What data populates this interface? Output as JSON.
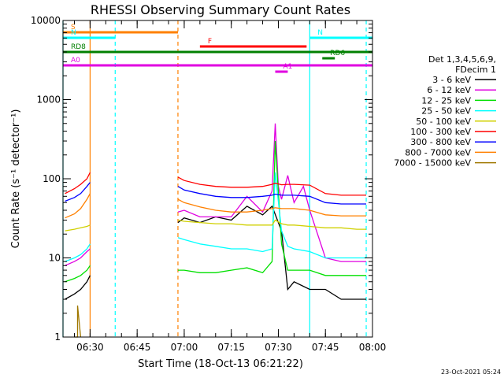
{
  "chart_data": {
    "type": "line",
    "title": "RHESSI Observing Summary Count Rates",
    "xlabel": "Start Time (18-Oct-13 06:21:22)",
    "ylabel": "Count Rate (s⁻¹ detector⁻¹)",
    "y_scale": "log",
    "ylim": [
      1,
      10000
    ],
    "xlim": [
      "06:21:22",
      "08:00:00"
    ],
    "y_tick_labels": [
      "1",
      "10",
      "100",
      "1000",
      "10000"
    ],
    "x_tick_labels": [
      "06:30",
      "06:45",
      "07:00",
      "07:15",
      "07:30",
      "07:45",
      "08:00"
    ],
    "legend_header": [
      "Det 1,3,4,5,6,9,",
      "FDecim 1"
    ],
    "timestamp": "23-Oct-2021 05:24",
    "series": [
      {
        "name": "3 - 6 keV",
        "color": "#000000",
        "x": [
          "06:22",
          "06:25",
          "06:27",
          "06:29",
          "06:30",
          "06:58",
          "07:00",
          "07:05",
          "07:10",
          "07:15",
          "07:20",
          "07:25",
          "07:28",
          "07:31",
          "07:33",
          "07:35",
          "07:40",
          "07:45",
          "07:50",
          "07:55",
          "07:58"
        ],
        "y": [
          3,
          3.5,
          4,
          5,
          6,
          28,
          32,
          28,
          33,
          30,
          45,
          35,
          45,
          22,
          4,
          5,
          4,
          4,
          3,
          3,
          3
        ]
      },
      {
        "name": "6 - 12 keV",
        "color": "#e000e0",
        "x": [
          "06:22",
          "06:25",
          "06:27",
          "06:29",
          "06:30",
          "06:58",
          "07:00",
          "07:05",
          "07:10",
          "07:15",
          "07:20",
          "07:25",
          "07:28",
          "07:29",
          "07:30",
          "07:31",
          "07:33",
          "07:35",
          "07:38",
          "07:40",
          "07:45",
          "07:50",
          "07:55",
          "07:58"
        ],
        "y": [
          8,
          9,
          10,
          12,
          13,
          38,
          40,
          33,
          33,
          33,
          60,
          38,
          70,
          500,
          80,
          55,
          110,
          50,
          80,
          40,
          10,
          9,
          9,
          9
        ]
      },
      {
        "name": "12 - 25 keV",
        "color": "#00e000",
        "x": [
          "06:22",
          "06:25",
          "06:27",
          "06:29",
          "06:30",
          "06:58",
          "07:00",
          "07:05",
          "07:10",
          "07:15",
          "07:20",
          "07:25",
          "07:28",
          "07:29",
          "07:31",
          "07:33",
          "07:35",
          "07:40",
          "07:45",
          "07:50",
          "07:55",
          "07:58"
        ],
        "y": [
          5,
          5.5,
          6,
          7,
          8,
          7,
          7,
          6.5,
          6.5,
          7,
          7.5,
          6.5,
          9,
          300,
          15,
          7,
          7,
          7,
          6,
          6,
          6,
          6
        ]
      },
      {
        "name": "25 - 50 keV",
        "color": "#00ffff",
        "x": [
          "06:22",
          "06:25",
          "06:27",
          "06:29",
          "06:30",
          "06:58",
          "07:00",
          "07:05",
          "07:10",
          "07:15",
          "07:20",
          "07:25",
          "07:28",
          "07:29",
          "07:31",
          "07:33",
          "07:35",
          "07:40",
          "07:45",
          "07:50",
          "07:55",
          "07:58"
        ],
        "y": [
          9,
          10,
          11,
          13,
          15,
          18,
          17,
          15,
          14,
          13,
          13,
          12,
          13,
          120,
          22,
          14,
          13,
          12,
          10,
          10,
          10,
          10
        ]
      },
      {
        "name": "50 - 100 keV",
        "color": "#d0d000",
        "x": [
          "06:22",
          "06:25",
          "06:27",
          "06:29",
          "06:30",
          "06:58",
          "07:00",
          "07:05",
          "07:10",
          "07:15",
          "07:20",
          "07:25",
          "07:28",
          "07:29",
          "07:31",
          "07:33",
          "07:35",
          "07:40",
          "07:45",
          "07:50",
          "07:55",
          "07:58"
        ],
        "y": [
          22,
          23,
          24,
          25,
          26,
          30,
          29,
          28,
          27,
          27,
          26,
          26,
          26,
          30,
          27,
          26,
          26,
          25,
          24,
          24,
          23,
          23
        ]
      },
      {
        "name": "100 - 300 keV",
        "color": "#ff0000",
        "x": [
          "06:22",
          "06:25",
          "06:27",
          "06:29",
          "06:30",
          "06:58",
          "07:00",
          "07:05",
          "07:10",
          "07:15",
          "07:20",
          "07:25",
          "07:28",
          "07:29",
          "07:31",
          "07:33",
          "07:35",
          "07:40",
          "07:45",
          "07:50",
          "07:55",
          "07:58"
        ],
        "y": [
          65,
          75,
          85,
          100,
          120,
          105,
          95,
          85,
          80,
          78,
          78,
          80,
          85,
          88,
          84,
          85,
          85,
          83,
          65,
          62,
          62,
          62
        ]
      },
      {
        "name": "300 - 800 keV",
        "color": "#0000ff",
        "x": [
          "06:22",
          "06:25",
          "06:27",
          "06:29",
          "06:30",
          "06:58",
          "07:00",
          "07:05",
          "07:10",
          "07:15",
          "07:20",
          "07:25",
          "07:28",
          "07:29",
          "07:31",
          "07:33",
          "07:35",
          "07:40",
          "07:45",
          "07:50",
          "07:55",
          "07:58"
        ],
        "y": [
          52,
          58,
          65,
          80,
          90,
          80,
          72,
          65,
          60,
          58,
          58,
          60,
          62,
          64,
          62,
          62,
          62,
          60,
          50,
          48,
          48,
          48
        ]
      },
      {
        "name": "800 - 7000 keV",
        "color": "#ff8000",
        "x": [
          "06:22",
          "06:25",
          "06:27",
          "06:29",
          "06:30",
          "06:58",
          "07:00",
          "07:05",
          "07:10",
          "07:15",
          "07:20",
          "07:25",
          "07:28",
          "07:29",
          "07:31",
          "07:33",
          "07:35",
          "07:40",
          "07:45",
          "07:50",
          "07:55",
          "07:58"
        ],
        "y": [
          32,
          36,
          42,
          55,
          65,
          55,
          50,
          44,
          40,
          38,
          38,
          40,
          42,
          43,
          42,
          42,
          42,
          40,
          35,
          34,
          34,
          34
        ]
      },
      {
        "name": "7000 - 15000 keV",
        "color": "#a07800",
        "x": [
          "06:25",
          "06:26",
          "06:26",
          "06:27",
          "06:27"
        ],
        "y": [
          1,
          1,
          2.5,
          1,
          1
        ]
      }
    ],
    "attenuator_labels": [
      {
        "label": "S",
        "color": "#ff8000",
        "start": "06:21:22",
        "end": "06:58"
      },
      {
        "label": "N",
        "color": "#00ffff",
        "start": "06:21:22",
        "end": "06:38"
      },
      {
        "label": "N",
        "color": "#00ffff",
        "start": "07:40",
        "end": "08:00"
      },
      {
        "label": "F",
        "color": "#ff0000",
        "start": "07:05",
        "end": "07:39"
      },
      {
        "label": "RD8",
        "color": "#008000",
        "start": "06:21:22",
        "end": "08:00"
      },
      {
        "label": "RD6",
        "color": "#008000",
        "start": "07:44",
        "end": "07:48"
      },
      {
        "label": "A0",
        "color": "#e000e0",
        "start": "06:21:22",
        "end": "08:00"
      },
      {
        "label": "A1",
        "color": "#e000e0",
        "start": "07:29",
        "end": "07:33"
      }
    ],
    "vertical_markers": [
      {
        "time": "06:21:22",
        "color": "#00ffff",
        "style": "solid"
      },
      {
        "time": "06:30",
        "color": "#ff8000",
        "style": "solid"
      },
      {
        "time": "06:38",
        "color": "#00ffff",
        "style": "dashed"
      },
      {
        "time": "06:58",
        "color": "#ff8000",
        "style": "dashed"
      },
      {
        "time": "07:40",
        "color": "#00ffff",
        "style": "solid"
      },
      {
        "time": "07:58",
        "color": "#00ffff",
        "style": "dashed"
      }
    ],
    "grid": false,
    "legend_position": "right"
  }
}
